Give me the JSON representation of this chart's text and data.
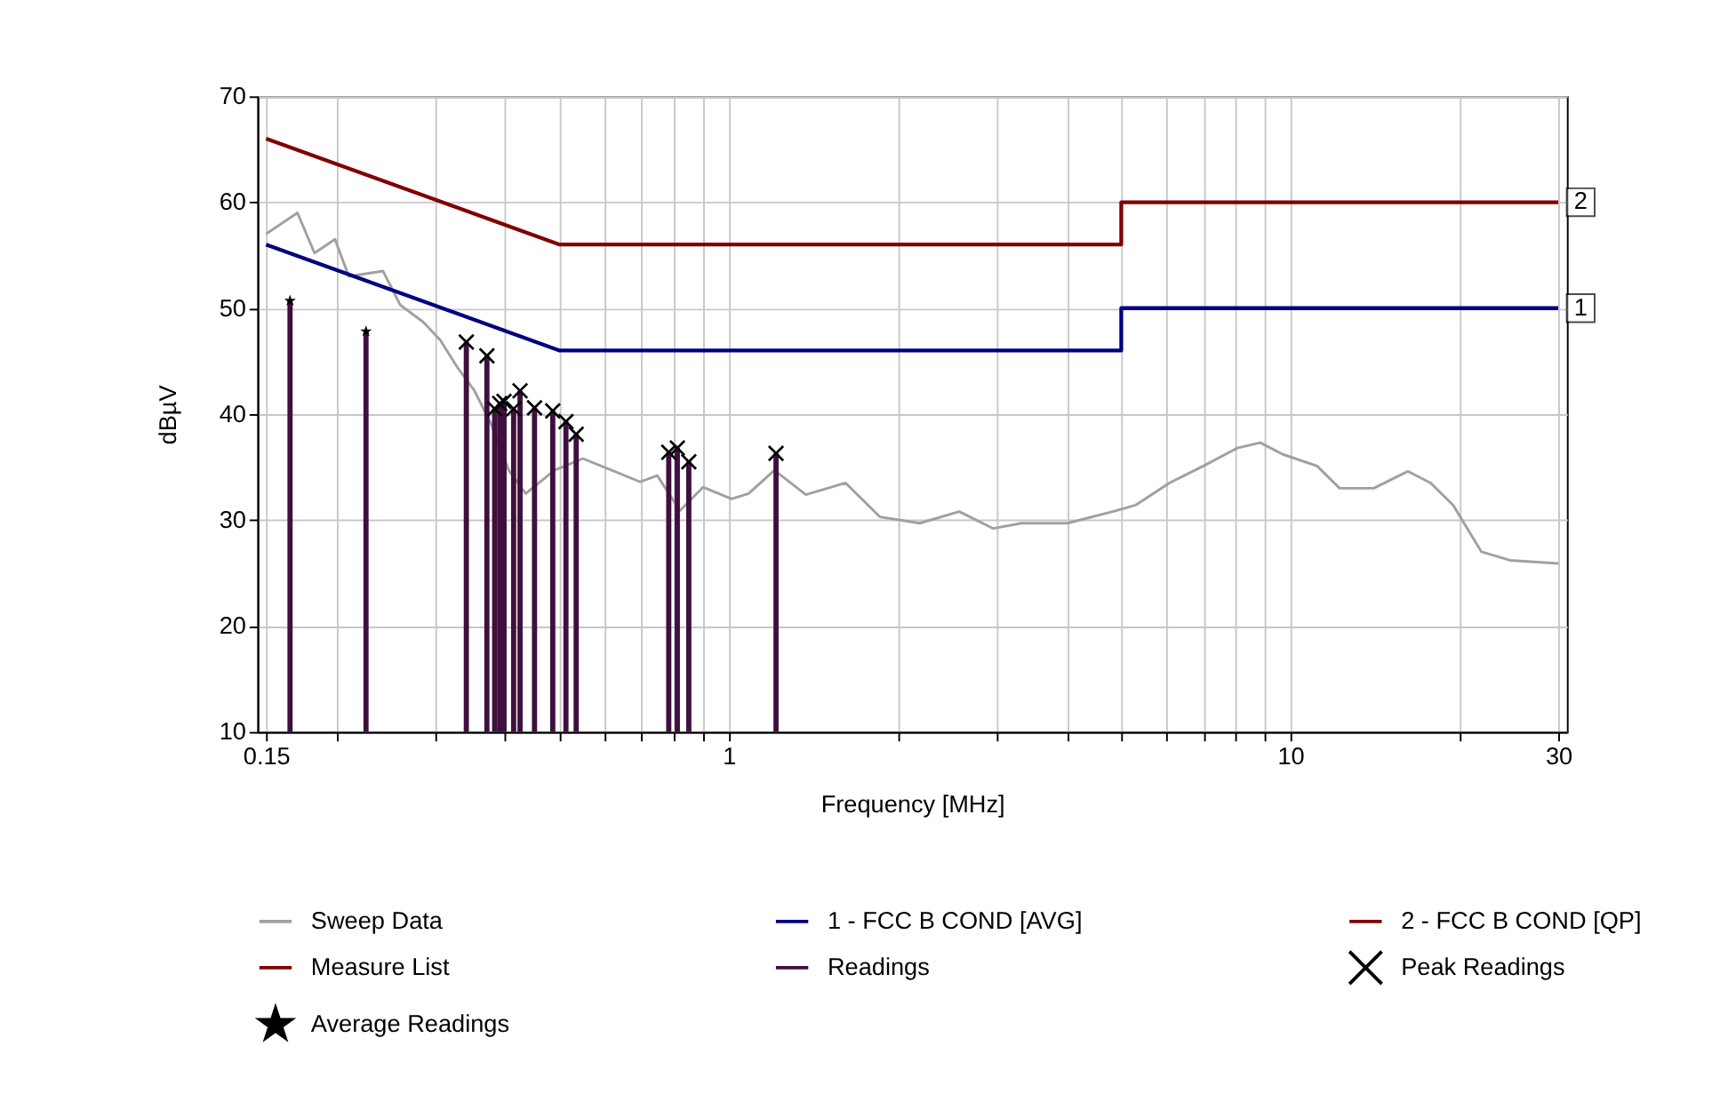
{
  "chart_data": {
    "type": "line",
    "xlabel": "Frequency [MHz]",
    "ylabel": "dBµV",
    "log": "x",
    "xlim": [
      0.15,
      30
    ],
    "ylim": [
      10,
      70
    ],
    "xticks": [
      0.15,
      {
        "value": 0.2,
        "label": null
      },
      {
        "value": 0.3,
        "label": null
      },
      {
        "value": 0.4,
        "label": null
      },
      {
        "value": 0.5,
        "label": null
      },
      {
        "value": 0.6,
        "label": null
      },
      {
        "value": 0.7,
        "label": null
      },
      {
        "value": 0.8,
        "label": null
      },
      {
        "value": 0.9,
        "label": null
      },
      1,
      {
        "value": 2,
        "label": null
      },
      {
        "value": 3,
        "label": null
      },
      {
        "value": 4,
        "label": null
      },
      {
        "value": 5,
        "label": null
      },
      {
        "value": 6,
        "label": null
      },
      {
        "value": 7,
        "label": null
      },
      {
        "value": 8,
        "label": null
      },
      {
        "value": 9,
        "label": null
      },
      10,
      {
        "value": 20,
        "label": null
      },
      30
    ],
    "yticks": [
      10,
      20,
      30,
      40,
      50,
      60,
      70
    ],
    "grid": true,
    "legend": "bottom",
    "annotations": [
      {
        "text": "1",
        "x": 30,
        "y": 50
      },
      {
        "text": "2",
        "x": 30,
        "y": 60
      }
    ],
    "series": [
      {
        "name": "Sweep Data",
        "color": "#a0a0a0",
        "x": [
          0.15,
          0.1706,
          0.183,
          0.199,
          0.2106,
          0.2424,
          0.26,
          0.2856,
          0.3063,
          0.3288,
          0.3526,
          0.378,
          0.4058,
          0.435,
          0.4895,
          0.55,
          0.619,
          0.6955,
          0.746,
          0.819,
          0.9,
          1.012,
          1.085,
          1.206,
          1.372,
          1.615,
          1.858,
          2.188,
          2.573,
          2.959,
          3.32,
          4.01,
          4.83,
          5.3,
          6.09,
          7.0,
          8.05,
          8.84,
          9.7,
          11.16,
          12.24,
          14.08,
          16.19,
          17.78,
          19.5,
          21.9,
          24.6,
          30
        ],
        "values": [
          57.0,
          59.0,
          55.2,
          56.5,
          53.0,
          53.5,
          50.3,
          48.7,
          47.0,
          44.4,
          42.2,
          39.0,
          34.7,
          32.5,
          34.7,
          35.8,
          34.7,
          33.6,
          34.2,
          30.9,
          33.1,
          32.0,
          32.5,
          34.7,
          32.4,
          33.5,
          30.3,
          29.7,
          30.8,
          29.2,
          29.7,
          29.7,
          30.8,
          31.4,
          33.5,
          35.1,
          36.8,
          37.3,
          36.2,
          35.1,
          33.0,
          33.0,
          34.6,
          33.5,
          31.4,
          27.0,
          26.2,
          25.9
        ]
      },
      {
        "name": "1 - FCC B COND [AVG]",
        "color": "#000080",
        "x": [
          0.15,
          0.5,
          5,
          5,
          30
        ],
        "values": [
          56,
          46,
          46,
          50,
          50
        ]
      },
      {
        "name": "2 - FCC B COND [QP]",
        "color": "#800000",
        "x": [
          0.15,
          0.5,
          5,
          5,
          30
        ],
        "values": [
          66,
          56,
          56,
          60,
          60
        ]
      },
      {
        "name": "Measure List",
        "color": "#800000"
      },
      {
        "name": "Readings",
        "type": "bar",
        "color": "#3f0f3f",
        "x": [
          0.1655,
          0.226,
          0.341,
          0.371,
          0.383,
          0.391,
          0.398,
          0.414,
          0.425,
          0.451,
          0.486,
          0.513,
          0.535,
          0.782,
          0.81,
          0.849,
          1.214
        ],
        "values": [
          50.7,
          47.8,
          46.8,
          45.5,
          40.5,
          41.0,
          41.2,
          40.5,
          42.2,
          40.6,
          40.3,
          39.3,
          38.1,
          36.4,
          36.8,
          35.5,
          36.3
        ]
      },
      {
        "name": "Peak Readings",
        "type": "scatter",
        "color": "#000000",
        "marker": "cross",
        "x": [
          0.341,
          0.371,
          0.383,
          0.391,
          0.398,
          0.414,
          0.425,
          0.451,
          0.486,
          0.513,
          0.535,
          0.782,
          0.81,
          0.849,
          1.214
        ],
        "values": [
          46.8,
          45.5,
          40.5,
          41.0,
          41.2,
          40.5,
          42.2,
          40.6,
          40.3,
          39.3,
          38.1,
          36.4,
          36.8,
          35.5,
          36.3
        ]
      },
      {
        "name": "Average Readings",
        "type": "scatter",
        "color": "#000000",
        "marker": "star",
        "x": [
          0.1655,
          0.226
        ],
        "values": [
          50.7,
          47.8
        ]
      }
    ]
  }
}
